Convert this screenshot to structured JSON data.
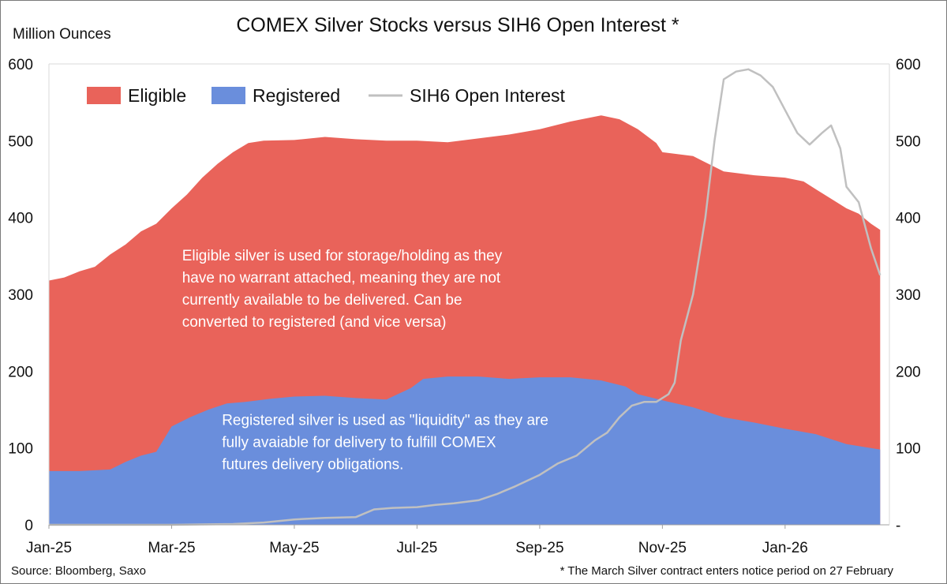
{
  "chart_data": {
    "type": "area",
    "title": "COMEX Silver Stocks versus SIH6 Open Interest *",
    "ylabel": "Million Ounces",
    "ylim": [
      0,
      600
    ],
    "y_ticks": [
      "0",
      "100",
      "200",
      "300",
      "400",
      "500",
      "600"
    ],
    "y2_ticks": [
      "-",
      "100",
      "200",
      "300",
      "400",
      "500",
      "600"
    ],
    "x_ticks": [
      "Jan-25",
      "Mar-25",
      "May-25",
      "Jul-25",
      "Sep-25",
      "Nov-25",
      "Jan-26"
    ],
    "x_tick_months": [
      0,
      2,
      4,
      6,
      8,
      10,
      12
    ],
    "x_range_months": [
      0,
      13.7
    ],
    "grid": false,
    "legend_position": "top-left",
    "colors": {
      "eligible": "#E9635A",
      "registered": "#6A8EDC",
      "open_interest": "#C0C0C0"
    },
    "series": [
      {
        "name": "Eligible",
        "kind": "stacked-area",
        "note": "values are stacked totals (Registered + Eligible)",
        "points": [
          [
            0,
            318
          ],
          [
            0.25,
            322
          ],
          [
            0.5,
            330
          ],
          [
            0.75,
            336
          ],
          [
            1.0,
            352
          ],
          [
            1.25,
            365
          ],
          [
            1.5,
            382
          ],
          [
            1.75,
            392
          ],
          [
            2.0,
            412
          ],
          [
            2.25,
            430
          ],
          [
            2.5,
            452
          ],
          [
            2.75,
            470
          ],
          [
            3.0,
            485
          ],
          [
            3.25,
            497
          ],
          [
            3.5,
            500
          ],
          [
            4.0,
            501
          ],
          [
            4.5,
            505
          ],
          [
            5.0,
            502
          ],
          [
            5.5,
            500
          ],
          [
            6.0,
            500
          ],
          [
            6.5,
            498
          ],
          [
            7.0,
            503
          ],
          [
            7.5,
            508
          ],
          [
            8.0,
            515
          ],
          [
            8.5,
            525
          ],
          [
            9.0,
            533
          ],
          [
            9.3,
            528
          ],
          [
            9.6,
            515
          ],
          [
            9.9,
            497
          ],
          [
            10.0,
            485
          ],
          [
            10.5,
            480
          ],
          [
            11.0,
            460
          ],
          [
            11.5,
            455
          ],
          [
            12.0,
            452
          ],
          [
            12.3,
            447
          ],
          [
            12.5,
            437
          ],
          [
            12.8,
            422
          ],
          [
            13.0,
            412
          ],
          [
            13.2,
            405
          ],
          [
            13.4,
            392
          ],
          [
            13.55,
            384
          ]
        ]
      },
      {
        "name": "Registered",
        "kind": "area",
        "points": [
          [
            0,
            70
          ],
          [
            0.5,
            70
          ],
          [
            1.0,
            72
          ],
          [
            1.25,
            82
          ],
          [
            1.5,
            90
          ],
          [
            1.75,
            95
          ],
          [
            2.0,
            128
          ],
          [
            2.3,
            140
          ],
          [
            2.6,
            150
          ],
          [
            2.9,
            158
          ],
          [
            3.2,
            160
          ],
          [
            3.6,
            164
          ],
          [
            4.0,
            167
          ],
          [
            4.5,
            168
          ],
          [
            5.0,
            165
          ],
          [
            5.5,
            163
          ],
          [
            5.9,
            178
          ],
          [
            6.1,
            190
          ],
          [
            6.5,
            193
          ],
          [
            7.0,
            193
          ],
          [
            7.5,
            190
          ],
          [
            8.0,
            192
          ],
          [
            8.5,
            192
          ],
          [
            9.0,
            188
          ],
          [
            9.4,
            180
          ],
          [
            9.6,
            170
          ],
          [
            10.0,
            162
          ],
          [
            10.5,
            153
          ],
          [
            11.0,
            140
          ],
          [
            11.5,
            133
          ],
          [
            12.0,
            125
          ],
          [
            12.5,
            118
          ],
          [
            13.0,
            105
          ],
          [
            13.55,
            98
          ]
        ]
      },
      {
        "name": "SIH6 Open Interest",
        "kind": "line",
        "points": [
          [
            0,
            0
          ],
          [
            1.0,
            0
          ],
          [
            2.0,
            0
          ],
          [
            3.0,
            1
          ],
          [
            3.5,
            3
          ],
          [
            4.0,
            7
          ],
          [
            4.5,
            9
          ],
          [
            5.0,
            10
          ],
          [
            5.3,
            20
          ],
          [
            5.6,
            22
          ],
          [
            6.0,
            23
          ],
          [
            6.3,
            26
          ],
          [
            6.6,
            28
          ],
          [
            7.0,
            32
          ],
          [
            7.3,
            40
          ],
          [
            7.6,
            50
          ],
          [
            8.0,
            65
          ],
          [
            8.3,
            80
          ],
          [
            8.6,
            90
          ],
          [
            8.9,
            110
          ],
          [
            9.1,
            120
          ],
          [
            9.3,
            140
          ],
          [
            9.5,
            155
          ],
          [
            9.7,
            160
          ],
          [
            9.9,
            160
          ],
          [
            10.1,
            170
          ],
          [
            10.2,
            185
          ],
          [
            10.3,
            240
          ],
          [
            10.5,
            300
          ],
          [
            10.7,
            400
          ],
          [
            10.85,
            500
          ],
          [
            11.0,
            580
          ],
          [
            11.2,
            590
          ],
          [
            11.4,
            593
          ],
          [
            11.6,
            585
          ],
          [
            11.8,
            570
          ],
          [
            12.0,
            540
          ],
          [
            12.2,
            510
          ],
          [
            12.4,
            495
          ],
          [
            12.6,
            510
          ],
          [
            12.75,
            520
          ],
          [
            12.9,
            490
          ],
          [
            13.0,
            440
          ],
          [
            13.2,
            420
          ],
          [
            13.4,
            360
          ],
          [
            13.55,
            325
          ]
        ]
      }
    ],
    "annotations": [
      {
        "text_lines": [
          "Eligible silver is used for storage/holding as they",
          "have no warrant attached, meaning they are not",
          "currently available to be delivered. Can be",
          "converted to registered (and vice versa)"
        ],
        "anchor_month": 2.17,
        "anchor_value": 344
      },
      {
        "text_lines": [
          "Registered silver is used as \"liquidity\" as they are",
          "fully avaiable for delivery to fulfill COMEX",
          "futures delivery obligations."
        ],
        "anchor_month": 2.82,
        "anchor_value": 130
      }
    ],
    "source": "Source: Bloomberg, Saxo",
    "footnote": "* The March Silver contract enters notice period on 27 February"
  }
}
